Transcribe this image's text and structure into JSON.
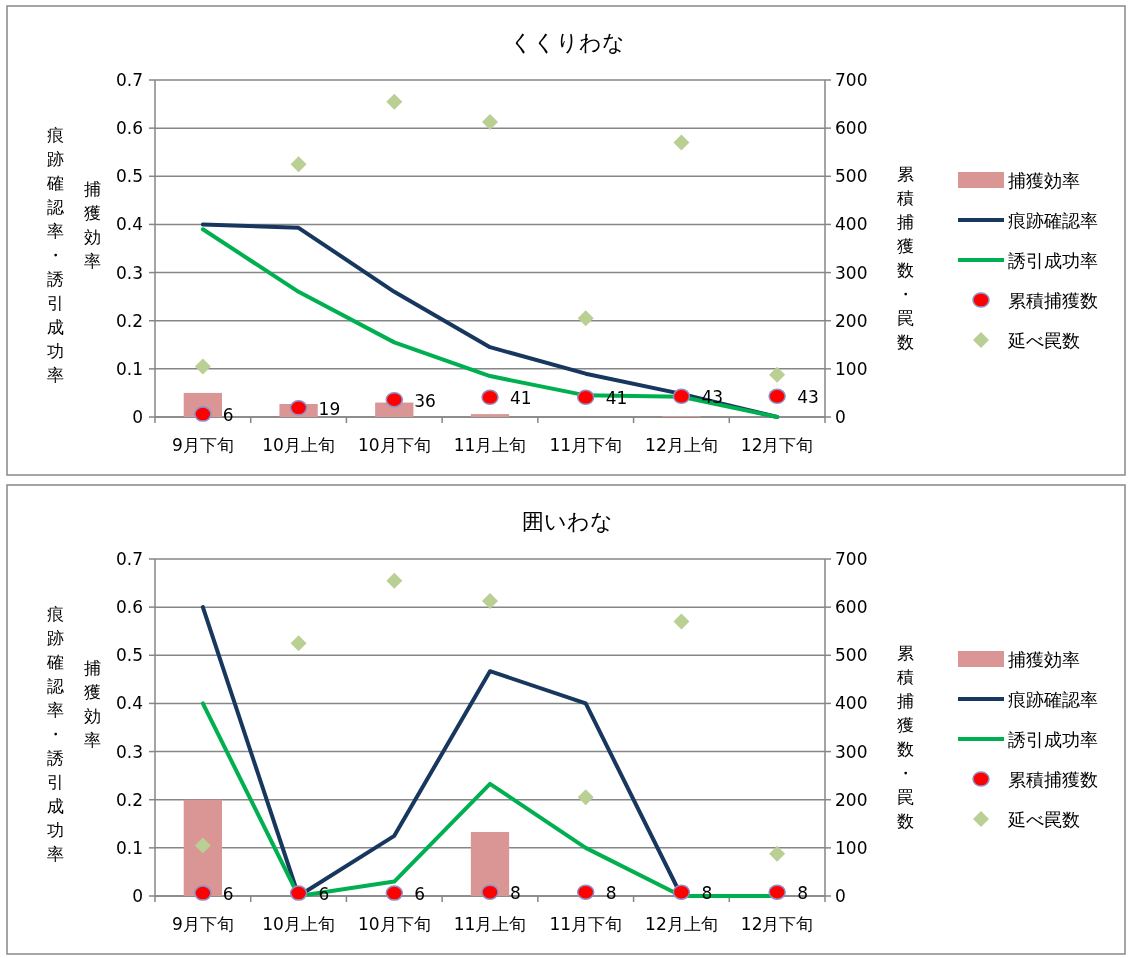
{
  "chart_data": [
    {
      "type": "bar",
      "title": "くくりわな",
      "ylabel": "痕跡確認率・誘引成功率",
      "y2label": "累積捕獲数・罠数",
      "annotations": [
        "捕獲効率"
      ],
      "categories": [
        "9月下旬",
        "10月上旬",
        "10月下旬",
        "11月上旬",
        "11月下旬",
        "12月上旬",
        "12月下旬"
      ],
      "series": [
        {
          "name": "捕獲効率",
          "color": "#d99694",
          "values": [
            0.05,
            0.027,
            0.03,
            0.006,
            0,
            0.002,
            0
          ]
        },
        {
          "name": "痕跡確認率",
          "type": "line",
          "color": "#17375e",
          "values": [
            0.4,
            0.393,
            0.26,
            0.145,
            0.09,
            0.048,
            0
          ]
        },
        {
          "name": "誘引成功率",
          "type": "line",
          "color": "#00b050",
          "values": [
            0.39,
            0.26,
            0.155,
            0.085,
            0.045,
            0.042,
            0
          ]
        },
        {
          "name": "累積捕獲数",
          "type": "scatter",
          "axis": "y2",
          "marker": "circle",
          "color": "#ff0000",
          "data_labels": true,
          "values": [
            6,
            19,
            36,
            41,
            41,
            43,
            43
          ]
        },
        {
          "name": "延べ罠数",
          "type": "scatter",
          "axis": "y2",
          "marker": "diamond",
          "color": "#b9cf93",
          "values": [
            105,
            525,
            655,
            613,
            205,
            570,
            88
          ]
        }
      ],
      "ylim": [
        0,
        0.7
      ],
      "yticks": [
        0,
        0.1,
        0.2,
        0.3,
        0.4,
        0.5,
        0.6,
        0.7
      ],
      "y2lim": [
        0,
        700
      ],
      "y2ticks": [
        0,
        100,
        200,
        300,
        400,
        500,
        600,
        700
      ],
      "grid": "y",
      "legend": "right"
    },
    {
      "type": "bar",
      "title": "囲いわな",
      "ylabel": "痕跡確認率・誘引成功率",
      "y2label": "累積捕獲数・罠数",
      "annotations": [
        "捕獲効率"
      ],
      "categories": [
        "9月下旬",
        "10月上旬",
        "10月下旬",
        "11月上旬",
        "11月下旬",
        "12月上旬",
        "12月下旬"
      ],
      "series": [
        {
          "name": "捕獲効率",
          "color": "#d99694",
          "values": [
            0.2,
            0,
            0,
            0.133,
            0,
            0,
            0
          ]
        },
        {
          "name": "痕跡確認率",
          "type": "line",
          "color": "#17375e",
          "values": [
            0.6,
            0,
            0.125,
            0.467,
            0.4,
            0,
            0
          ]
        },
        {
          "name": "誘引成功率",
          "type": "line",
          "color": "#00b050",
          "values": [
            0.4,
            0,
            0.03,
            0.233,
            0.1,
            0,
            0
          ]
        },
        {
          "name": "累積捕獲数",
          "type": "scatter",
          "axis": "y2",
          "marker": "circle",
          "color": "#ff0000",
          "data_labels": true,
          "values": [
            6,
            6,
            6,
            8,
            8,
            8,
            8
          ]
        },
        {
          "name": "延べ罠数",
          "type": "scatter",
          "axis": "y2",
          "marker": "diamond",
          "color": "#b9cf93",
          "values": [
            105,
            525,
            655,
            613,
            205,
            570,
            88
          ]
        }
      ],
      "ylim": [
        0,
        0.7
      ],
      "yticks": [
        0,
        0.1,
        0.2,
        0.3,
        0.4,
        0.5,
        0.6,
        0.7
      ],
      "y2lim": [
        0,
        700
      ],
      "y2ticks": [
        0,
        100,
        200,
        300,
        400,
        500,
        600,
        700
      ],
      "grid": "y",
      "legend": "right"
    }
  ]
}
